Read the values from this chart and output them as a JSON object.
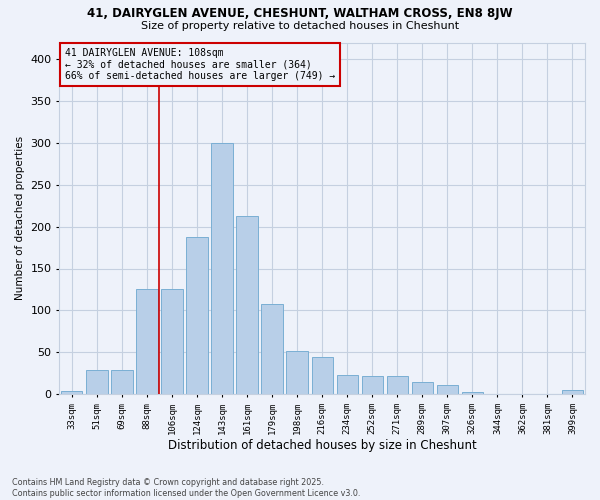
{
  "title_line1": "41, DAIRYGLEN AVENUE, CHESHUNT, WALTHAM CROSS, EN8 8JW",
  "title_line2": "Size of property relative to detached houses in Cheshunt",
  "xlabel": "Distribution of detached houses by size in Cheshunt",
  "ylabel": "Number of detached properties",
  "categories": [
    "33sqm",
    "51sqm",
    "69sqm",
    "88sqm",
    "106sqm",
    "124sqm",
    "143sqm",
    "161sqm",
    "179sqm",
    "198sqm",
    "216sqm",
    "234sqm",
    "252sqm",
    "271sqm",
    "289sqm",
    "307sqm",
    "326sqm",
    "344sqm",
    "362sqm",
    "381sqm",
    "399sqm"
  ],
  "values": [
    4,
    29,
    29,
    126,
    126,
    188,
    300,
    213,
    108,
    52,
    44,
    23,
    22,
    22,
    15,
    11,
    2,
    0,
    0,
    0,
    5
  ],
  "bar_color": "#b8cfe8",
  "bar_edgecolor": "#7aafd4",
  "vline_index": 4,
  "vline_color": "#cc0000",
  "annotation_text": "41 DAIRYGLEN AVENUE: 108sqm\n← 32% of detached houses are smaller (364)\n66% of semi-detached houses are larger (749) →",
  "annotation_box_edgecolor": "#cc0000",
  "background_color": "#eef2fa",
  "grid_color": "#c5d0e0",
  "footnote": "Contains HM Land Registry data © Crown copyright and database right 2025.\nContains public sector information licensed under the Open Government Licence v3.0.",
  "ylim": [
    0,
    420
  ],
  "yticks": [
    0,
    50,
    100,
    150,
    200,
    250,
    300,
    350,
    400
  ]
}
